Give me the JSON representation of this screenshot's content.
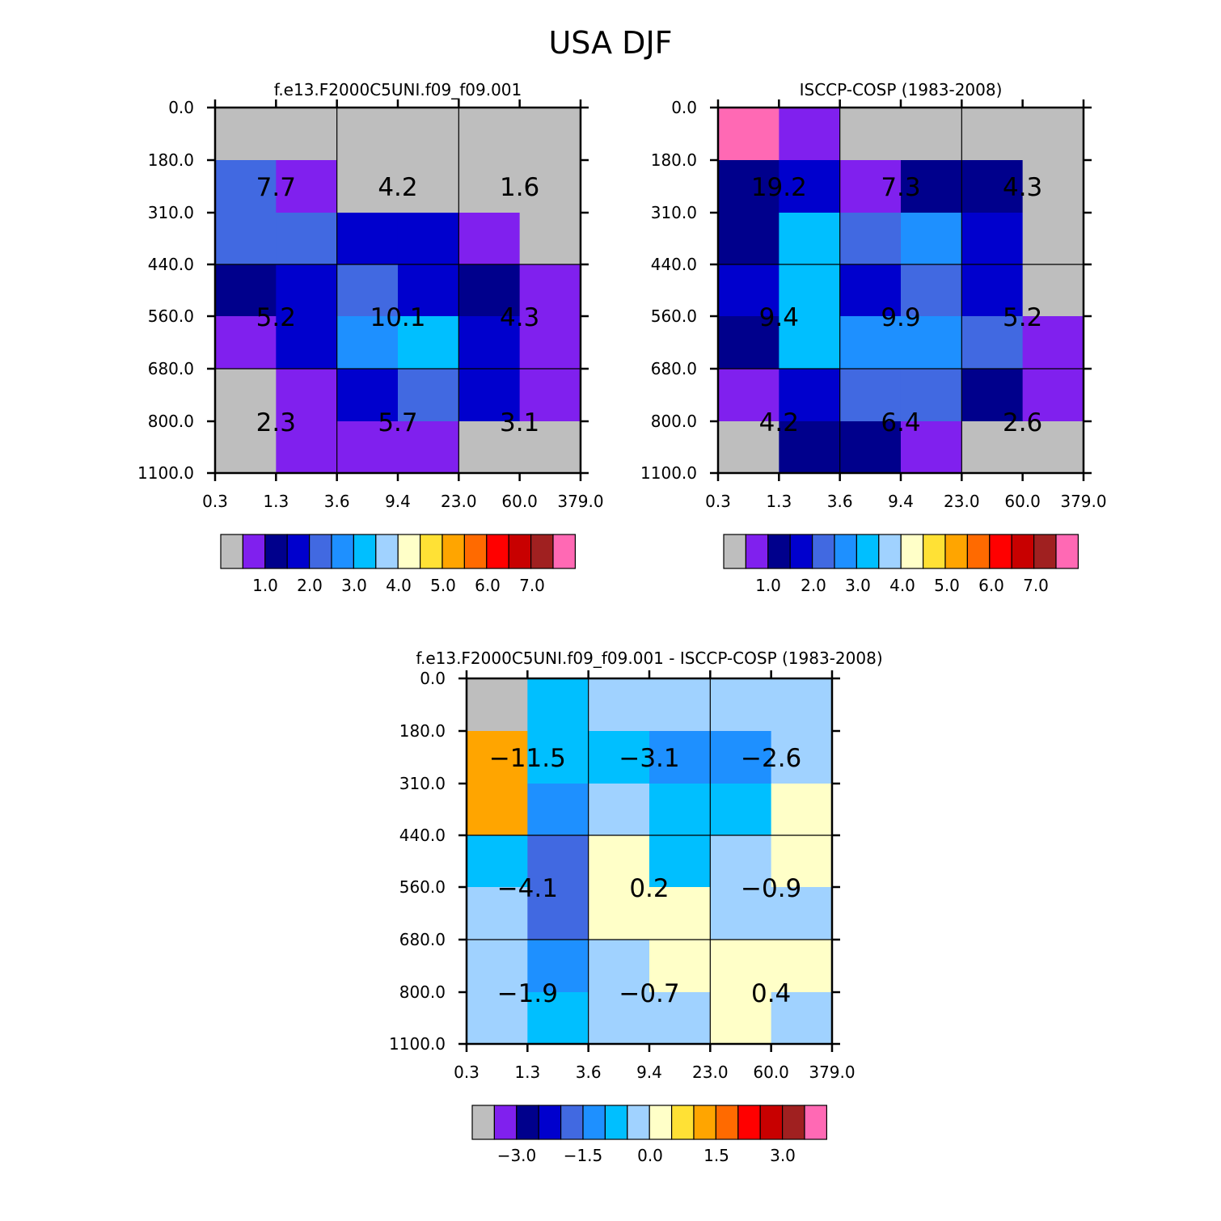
{
  "figure_title": "USA DJF",
  "colors": {
    "palette": [
      "#bebebe",
      "#8020ee",
      "#00008c",
      "#0000cd",
      "#4169e1",
      "#1e90ff",
      "#00bfff",
      "#a0d2ff",
      "#ffffc8",
      "#ffe135",
      "#ffa500",
      "#ff6a00",
      "#ff0000",
      "#c80000",
      "#a02020",
      "#ff69b4"
    ]
  },
  "chart_data": [
    {
      "id": "model",
      "type": "heatmap",
      "title": "f.e13.F2000C5UNI.f09_f09.001",
      "x_tick_labels": [
        "0.3",
        "1.3",
        "3.6",
        "9.4",
        "23.0",
        "60.0",
        "379.0"
      ],
      "y_tick_labels": [
        "0.0",
        "180.0",
        "310.0",
        "440.0",
        "560.0",
        "680.0",
        "800.0",
        "1100.0"
      ],
      "cell_color_index": [
        [
          0,
          0,
          0,
          0,
          0,
          0
        ],
        [
          4,
          1,
          0,
          0,
          0,
          0
        ],
        [
          4,
          4,
          3,
          3,
          1,
          0
        ],
        [
          2,
          3,
          4,
          3,
          2,
          1
        ],
        [
          1,
          3,
          5,
          6,
          3,
          1
        ],
        [
          0,
          1,
          3,
          4,
          3,
          1
        ],
        [
          0,
          1,
          1,
          1,
          0,
          0
        ]
      ],
      "group_labels": [
        [
          "7.7",
          "4.2",
          "1.6"
        ],
        [
          "5.2",
          "10.1",
          "4.3"
        ],
        [
          "2.3",
          "5.7",
          "3.1"
        ]
      ],
      "colorbar": {
        "labels": [
          "1.0",
          "2.0",
          "3.0",
          "4.0",
          "5.0",
          "6.0",
          "7.0"
        ]
      }
    },
    {
      "id": "obs",
      "type": "heatmap",
      "title": "ISCCP-COSP (1983-2008)",
      "x_tick_labels": [
        "0.3",
        "1.3",
        "3.6",
        "9.4",
        "23.0",
        "60.0",
        "379.0"
      ],
      "y_tick_labels": [
        "0.0",
        "180.0",
        "310.0",
        "440.0",
        "560.0",
        "680.0",
        "800.0",
        "1100.0"
      ],
      "cell_color_index": [
        [
          15,
          1,
          0,
          0,
          0,
          0
        ],
        [
          2,
          3,
          1,
          2,
          2,
          0
        ],
        [
          2,
          6,
          4,
          5,
          3,
          0
        ],
        [
          3,
          6,
          3,
          4,
          3,
          0
        ],
        [
          2,
          6,
          5,
          5,
          4,
          1
        ],
        [
          1,
          3,
          4,
          4,
          2,
          1
        ],
        [
          0,
          2,
          2,
          1,
          0,
          0
        ]
      ],
      "group_labels": [
        [
          "19.2",
          "7.3",
          "4.3"
        ],
        [
          "9.4",
          "9.9",
          "5.2"
        ],
        [
          "4.2",
          "6.4",
          "2.6"
        ]
      ],
      "colorbar": {
        "labels": [
          "1.0",
          "2.0",
          "3.0",
          "4.0",
          "5.0",
          "6.0",
          "7.0"
        ]
      }
    },
    {
      "id": "diff",
      "type": "heatmap",
      "title": "f.e13.F2000C5UNI.f09_f09.001 - ISCCP-COSP (1983-2008)",
      "x_tick_labels": [
        "0.3",
        "1.3",
        "3.6",
        "9.4",
        "23.0",
        "60.0",
        "379.0"
      ],
      "y_tick_labels": [
        "0.0",
        "180.0",
        "310.0",
        "440.0",
        "560.0",
        "680.0",
        "800.0",
        "1100.0"
      ],
      "cell_color_index": [
        [
          0,
          6,
          7,
          7,
          7,
          7
        ],
        [
          10,
          6,
          6,
          5,
          5,
          7
        ],
        [
          10,
          5,
          7,
          6,
          6,
          8
        ],
        [
          6,
          4,
          8,
          6,
          7,
          8
        ],
        [
          7,
          4,
          8,
          8,
          7,
          7
        ],
        [
          7,
          5,
          7,
          8,
          8,
          8
        ],
        [
          7,
          6,
          7,
          7,
          8,
          7
        ]
      ],
      "group_labels": [
        [
          "-11.5",
          "-3.1",
          "-2.6"
        ],
        [
          "-4.1",
          "0.2",
          "-0.9"
        ],
        [
          "-1.9",
          "-0.7",
          "0.4"
        ]
      ],
      "colorbar": {
        "labels": [
          "-3.0",
          "-1.5",
          "0.0",
          "1.5",
          "3.0"
        ]
      }
    }
  ]
}
